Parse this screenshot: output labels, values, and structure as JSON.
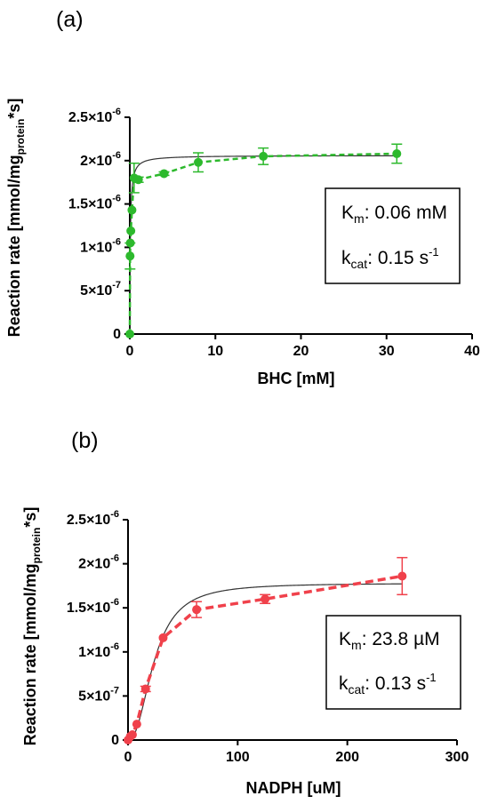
{
  "chart_data": [
    {
      "type": "scatter",
      "panel_label": "(a)",
      "xlabel": "BHC [mM]",
      "ylabel_main": "Reaction rate [mmol/mg",
      "ylabel_sub": "protein",
      "ylabel_end": "*s]",
      "xlim": [
        0,
        40
      ],
      "ylim": [
        0,
        2.5e-06
      ],
      "x_ticks": [
        0,
        10,
        20,
        30,
        40
      ],
      "x_tick_labels": [
        "0",
        "10",
        "20",
        "30",
        "40"
      ],
      "y_ticks": [
        0,
        5e-07,
        1e-06,
        1.5e-06,
        2e-06,
        2.5e-06
      ],
      "y_tick_labels": [
        {
          "mant": "0",
          "exp": ""
        },
        {
          "mant": "5×10",
          "exp": "-7"
        },
        {
          "mant": "1×10",
          "exp": "-6"
        },
        {
          "mant": "1.5×10",
          "exp": "-6"
        },
        {
          "mant": "2×10",
          "exp": "-6"
        },
        {
          "mant": "2.5×10",
          "exp": "-6"
        }
      ],
      "color": "#2db92d",
      "series": [
        {
          "x": [
            0,
            0.03,
            0.06,
            0.12,
            0.25,
            0.5,
            1,
            4,
            8,
            15.6,
            31.2
          ],
          "y": [
            0,
            9e-07,
            1.05e-06,
            1.19e-06,
            1.43e-06,
            1.8e-06,
            1.78e-06,
            1.85e-06,
            1.98e-06,
            2.05e-06,
            2.08e-06
          ],
          "err": [
            0,
            1.5e-07,
            0,
            0,
            0,
            1.7e-07,
            3e-08,
            2e-08,
            1.1e-07,
            9.5e-08,
            1.1e-07
          ]
        }
      ],
      "fit": {
        "vmax": 2.06e-06,
        "km": 0.06,
        "hill": 1
      },
      "annotation": {
        "km_label": "K",
        "km_sub": "m",
        "km_value": ": 0.06 mM",
        "kcat_label": "k",
        "kcat_sub": "cat",
        "kcat_value": ": 0.15 s",
        "kcat_exp": "-1"
      }
    },
    {
      "type": "scatter",
      "panel_label": "(b)",
      "xlabel": "NADPH [uM]",
      "ylabel_main": "Reaction rate [mmol/mg",
      "ylabel_sub": "protein",
      "ylabel_end": "*s]",
      "xlim": [
        0,
        300
      ],
      "ylim": [
        0,
        2.5e-06
      ],
      "x_ticks": [
        0,
        100,
        200,
        300
      ],
      "x_tick_labels": [
        "0",
        "100",
        "200",
        "300"
      ],
      "y_ticks": [
        0,
        5e-07,
        1e-06,
        1.5e-06,
        2e-06,
        2.5e-06
      ],
      "y_tick_labels": [
        {
          "mant": "0",
          "exp": ""
        },
        {
          "mant": "5×10",
          "exp": "-7"
        },
        {
          "mant": "1×10",
          "exp": "-6"
        },
        {
          "mant": "1.5×10",
          "exp": "-6"
        },
        {
          "mant": "2×10",
          "exp": "-6"
        },
        {
          "mant": "2.5×10",
          "exp": "-6"
        }
      ],
      "color": "#f0414b",
      "series": [
        {
          "x": [
            0,
            2,
            4,
            8,
            16,
            32,
            62.5,
            125,
            250
          ],
          "y": [
            0,
            4e-08,
            6e-08,
            1.8e-07,
            5.8e-07,
            1.16e-06,
            1.48e-06,
            1.6e-06,
            1.86e-06
          ],
          "err": [
            0,
            0,
            0,
            0,
            3e-08,
            0,
            9e-08,
            5e-08,
            2.1e-07
          ]
        }
      ],
      "fit": {
        "vmax": 1.78e-06,
        "km": 23.8,
        "hill": 2.3
      },
      "annotation": {
        "km_label": "K",
        "km_sub": "m",
        "km_value": ": 23.8 µM",
        "kcat_label": "k",
        "kcat_sub": "cat",
        "kcat_value": ": 0.13 s",
        "kcat_exp": "-1"
      }
    }
  ]
}
